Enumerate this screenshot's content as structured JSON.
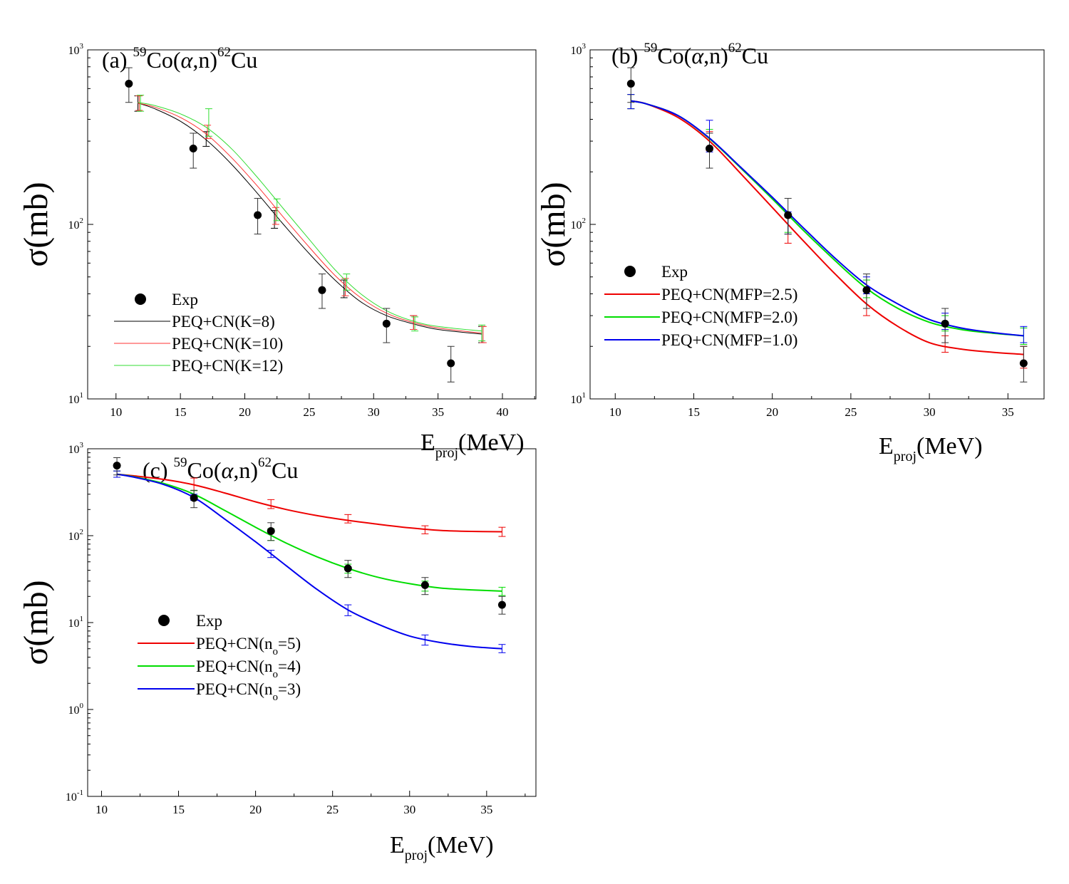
{
  "figure": {
    "panels": [
      {
        "id": "a",
        "title": "(a) "
      },
      {
        "id": "b",
        "title": "(b) "
      },
      {
        "id": "c",
        "title": "(c) "
      }
    ]
  },
  "chart_data": [
    {
      "panel": "a",
      "type": "line",
      "title": "(a) 59Co(α,n)62Cu",
      "reaction": {
        "target_mass": "59",
        "target": "Co(",
        "alpha": "α",
        "rest": ",n)",
        "product_mass": "62",
        "product": "Cu"
      },
      "xlabel": {
        "main": "E",
        "sub": "proj",
        "unit": "(MeV)"
      },
      "ylabel": "σ(mb)",
      "yscale": "log",
      "xlim": [
        7.8,
        42.6
      ],
      "ylim": [
        10,
        1000
      ],
      "xticks": [
        10,
        15,
        20,
        25,
        30,
        35,
        40
      ],
      "yticks": [
        {
          "base": "10",
          "exp": "1",
          "value": 10
        },
        {
          "base": "10",
          "exp": "2",
          "value": 100
        },
        {
          "base": "10",
          "exp": "3",
          "value": 1000
        }
      ],
      "legend_position": "bottom-left",
      "exp": {
        "name": "Exp",
        "points": [
          {
            "x": 11,
            "y": 640,
            "lo": 500,
            "hi": 790
          },
          {
            "x": 16,
            "y": 272,
            "lo": 210,
            "hi": 333
          },
          {
            "x": 21,
            "y": 113,
            "lo": 88,
            "hi": 141
          },
          {
            "x": 26,
            "y": 42,
            "lo": 33,
            "hi": 52
          },
          {
            "x": 31,
            "y": 27,
            "lo": 21,
            "hi": 33
          },
          {
            "x": 36,
            "y": 16,
            "lo": 12.5,
            "hi": 20
          }
        ]
      },
      "series": [
        {
          "name": "PEQ+CN(K=8)",
          "color": "#000000",
          "stroke_width": 1,
          "x": [
            11.7,
            13,
            15,
            17,
            19,
            21,
            23,
            25,
            27,
            29,
            31,
            33,
            35,
            38.4
          ],
          "y": [
            495,
            460,
            390,
            305,
            220,
            150,
            100,
            68,
            48,
            36,
            30,
            27,
            25,
            23.5
          ],
          "err": [
            {
              "x": 11.7,
              "lo": 445,
              "hi": 545
            },
            {
              "x": 17,
              "lo": 280,
              "hi": 340
            },
            {
              "x": 22.3,
              "lo": 95,
              "hi": 120
            },
            {
              "x": 27.7,
              "lo": 38,
              "hi": 48
            },
            {
              "x": 33.1,
              "lo": 25,
              "hi": 30
            },
            {
              "x": 38.4,
              "lo": 21,
              "hi": 26
            }
          ]
        },
        {
          "name": "PEQ+CN(K=10)",
          "color": "#ff3333",
          "stroke_width": 1,
          "x": [
            11.7,
            13,
            15,
            17,
            19,
            21,
            23,
            25,
            27,
            29,
            31,
            33,
            35,
            38.4
          ],
          "y": [
            495,
            470,
            410,
            330,
            240,
            165,
            110,
            74,
            51,
            38,
            31,
            27.5,
            25.5,
            23.8
          ],
          "err": [
            {
              "x": 11.8,
              "lo": 450,
              "hi": 545
            },
            {
              "x": 17.1,
              "lo": 310,
              "hi": 370
            },
            {
              "x": 22.4,
              "lo": 100,
              "hi": 125
            },
            {
              "x": 27.8,
              "lo": 39,
              "hi": 49
            },
            {
              "x": 33.1,
              "lo": 25,
              "hi": 30
            },
            {
              "x": 38.5,
              "lo": 21,
              "hi": 26
            }
          ]
        },
        {
          "name": "PEQ+CN(K=12)",
          "color": "#33dd33",
          "stroke_width": 1,
          "x": [
            11.7,
            13,
            15,
            17,
            19,
            21,
            23,
            25,
            27,
            29,
            31,
            33,
            35,
            38.4
          ],
          "y": [
            500,
            480,
            430,
            360,
            270,
            185,
            123,
            82,
            55,
            40,
            32,
            28,
            26,
            24.5
          ],
          "err": [
            {
              "x": 11.9,
              "lo": 445,
              "hi": 550
            },
            {
              "x": 17.2,
              "lo": 320,
              "hi": 460
            },
            {
              "x": 22.5,
              "lo": 105,
              "hi": 140
            },
            {
              "x": 27.9,
              "lo": 42,
              "hi": 52
            },
            {
              "x": 33.2,
              "lo": 24.5,
              "hi": 29.5
            },
            {
              "x": 38.4,
              "lo": 21.5,
              "hi": 26.5
            }
          ]
        }
      ]
    },
    {
      "panel": "b",
      "type": "line",
      "title": "(b) 59Co(α,n)62Cu",
      "reaction": {
        "target_mass": "59",
        "target": "Co(",
        "alpha": "α",
        "rest": ",n)",
        "product_mass": "62",
        "product": "Cu"
      },
      "xlabel": {
        "main": "E",
        "sub": "proj",
        "unit": "(MeV)"
      },
      "ylabel": "σ(mb)",
      "yscale": "log",
      "xlim": [
        8.4,
        37.3
      ],
      "ylim": [
        10,
        1000
      ],
      "xticks": [
        10,
        15,
        20,
        25,
        30,
        35
      ],
      "yticks": [
        {
          "base": "10",
          "exp": "1",
          "value": 10
        },
        {
          "base": "10",
          "exp": "2",
          "value": 100
        },
        {
          "base": "10",
          "exp": "3",
          "value": 1000
        }
      ],
      "legend_position": "middle-left",
      "exp": {
        "name": "Exp",
        "points": [
          {
            "x": 11,
            "y": 640,
            "lo": 500,
            "hi": 790
          },
          {
            "x": 16,
            "y": 272,
            "lo": 210,
            "hi": 333
          },
          {
            "x": 21,
            "y": 113,
            "lo": 88,
            "hi": 141
          },
          {
            "x": 26,
            "y": 42,
            "lo": 33,
            "hi": 52
          },
          {
            "x": 31,
            "y": 27,
            "lo": 21,
            "hi": 33
          },
          {
            "x": 36,
            "y": 16,
            "lo": 12.5,
            "hi": 20
          }
        ]
      },
      "series": [
        {
          "name": "PEQ+CN(MFP=2.5)",
          "color": "#ee0000",
          "stroke_width": 2,
          "x": [
            11,
            12,
            14,
            16,
            18,
            20,
            22,
            24,
            26,
            28,
            30,
            32,
            34,
            36
          ],
          "y": [
            510,
            490,
            410,
            300,
            195,
            125,
            80,
            52,
            35,
            26,
            21,
            19.3,
            18.5,
            18
          ],
          "err": [
            {
              "x": 11,
              "lo": 460,
              "hi": 555
            },
            {
              "x": 16,
              "lo": 265,
              "hi": 340
            },
            {
              "x": 21,
              "lo": 78,
              "hi": 110
            },
            {
              "x": 26,
              "lo": 30,
              "hi": 40
            },
            {
              "x": 31,
              "lo": 18.5,
              "hi": 23
            },
            {
              "x": 36,
              "lo": 15,
              "hi": 20
            }
          ]
        },
        {
          "name": "PEQ+CN(MFP=2.0)",
          "color": "#00dd00",
          "stroke_width": 2,
          "x": [
            11,
            12,
            14,
            16,
            18,
            20,
            22,
            24,
            26,
            28,
            30,
            32,
            34,
            36
          ],
          "y": [
            510,
            490,
            420,
            310,
            210,
            140,
            92,
            62,
            43,
            33,
            27.5,
            25,
            23.8,
            23
          ],
          "err": [
            {
              "x": 11,
              "lo": 460,
              "hi": 555
            },
            {
              "x": 16,
              "lo": 270,
              "hi": 350
            },
            {
              "x": 21,
              "lo": 90,
              "hi": 115
            },
            {
              "x": 26,
              "lo": 38,
              "hi": 48
            },
            {
              "x": 31,
              "lo": 24.5,
              "hi": 30
            },
            {
              "x": 36,
              "lo": 20.5,
              "hi": 25.5
            }
          ]
        },
        {
          "name": "PEQ+CN(MFP=1.0)",
          "color": "#0000ee",
          "stroke_width": 2,
          "x": [
            11,
            12,
            14,
            16,
            18,
            20,
            22,
            24,
            26,
            28,
            30,
            32,
            34,
            36
          ],
          "y": [
            510,
            490,
            420,
            312,
            212,
            143,
            95,
            64,
            45,
            35,
            28.5,
            25.5,
            24,
            23
          ],
          "err": [
            {
              "x": 11,
              "lo": 460,
              "hi": 555
            },
            {
              "x": 16,
              "lo": 260,
              "hi": 395
            },
            {
              "x": 21,
              "lo": 88,
              "hi": 118
            },
            {
              "x": 26,
              "lo": 40,
              "hi": 50
            },
            {
              "x": 31,
              "lo": 25,
              "hi": 31
            },
            {
              "x": 36,
              "lo": 21,
              "hi": 26
            }
          ]
        }
      ]
    },
    {
      "panel": "c",
      "type": "line",
      "title": "(c) 59Co(α,n)62Cu",
      "reaction": {
        "target_mass": "59",
        "target": "Co(",
        "alpha": "α",
        "rest": ",n)",
        "product_mass": "62",
        "product": "Cu"
      },
      "xlabel": {
        "main": "E",
        "sub": "proj",
        "unit": "(MeV)"
      },
      "ylabel": "σ(mb)",
      "yscale": "log",
      "xlim": [
        9.1,
        38.2
      ],
      "ylim": [
        0.1,
        1000
      ],
      "xticks": [
        10,
        15,
        20,
        25,
        30,
        35
      ],
      "yticks": [
        {
          "base": "10",
          "exp": "-1",
          "value": 0.1
        },
        {
          "base": "10",
          "exp": "0",
          "value": 1
        },
        {
          "base": "10",
          "exp": "1",
          "value": 10
        },
        {
          "base": "10",
          "exp": "2",
          "value": 100
        },
        {
          "base": "10",
          "exp": "3",
          "value": 1000
        }
      ],
      "legend_position": "middle-left",
      "exp": {
        "name": "Exp",
        "points": [
          {
            "x": 11,
            "y": 640,
            "lo": 500,
            "hi": 790
          },
          {
            "x": 16,
            "y": 272,
            "lo": 210,
            "hi": 333
          },
          {
            "x": 21,
            "y": 113,
            "lo": 88,
            "hi": 141
          },
          {
            "x": 26,
            "y": 42,
            "lo": 33,
            "hi": 52
          },
          {
            "x": 31,
            "y": 27,
            "lo": 21,
            "hi": 33
          },
          {
            "x": 36,
            "y": 16,
            "lo": 12.5,
            "hi": 20
          }
        ]
      },
      "series": [
        {
          "name": "PEQ+CN(n",
          "sub": "o",
          "suffix": "=5)",
          "color": "#ee0000",
          "stroke_width": 2,
          "x": [
            11,
            12,
            14,
            16,
            18,
            20,
            22,
            24,
            26,
            28,
            30,
            32,
            34,
            36
          ],
          "y": [
            510,
            490,
            445,
            385,
            310,
            245,
            200,
            170,
            150,
            135,
            123,
            115,
            112,
            111
          ],
          "err": [
            {
              "x": 11,
              "lo": 470,
              "hi": 555
            },
            {
              "x": 16,
              "lo": 330,
              "hi": 460
            },
            {
              "x": 21,
              "lo": 205,
              "hi": 260
            },
            {
              "x": 26,
              "lo": 140,
              "hi": 175
            },
            {
              "x": 31,
              "lo": 105,
              "hi": 130
            },
            {
              "x": 36,
              "lo": 98,
              "hi": 125
            }
          ]
        },
        {
          "name": "PEQ+CN(n",
          "sub": "o",
          "suffix": "=4)",
          "color": "#00dd00",
          "stroke_width": 2,
          "x": [
            11,
            12,
            14,
            16,
            18,
            20,
            22,
            24,
            26,
            28,
            30,
            32,
            34,
            36
          ],
          "y": [
            510,
            480,
            400,
            300,
            195,
            125,
            82,
            57,
            42,
            33,
            28,
            25,
            23.8,
            23
          ],
          "err": [
            {
              "x": 11,
              "lo": 470,
              "hi": 555
            },
            {
              "x": 16,
              "lo": 280,
              "hi": 330
            },
            {
              "x": 21,
              "lo": 88,
              "hi": 120
            },
            {
              "x": 26,
              "lo": 37,
              "hi": 47
            },
            {
              "x": 31,
              "lo": 23,
              "hi": 30
            },
            {
              "x": 36,
              "lo": 20.5,
              "hi": 25.5
            }
          ]
        },
        {
          "name": "PEQ+CN(n",
          "sub": "o",
          "suffix": "=3)",
          "color": "#0000ee",
          "stroke_width": 2,
          "x": [
            11,
            12,
            14,
            16,
            18,
            20,
            22,
            24,
            26,
            28,
            30,
            32,
            34,
            36
          ],
          "y": [
            510,
            475,
            390,
            275,
            155,
            85,
            45,
            24,
            14,
            9.5,
            7,
            5.9,
            5.3,
            5
          ],
          "err": [
            {
              "x": 11,
              "lo": 470,
              "hi": 555
            },
            {
              "x": 16,
              "lo": 255,
              "hi": 300
            },
            {
              "x": 21,
              "lo": 56,
              "hi": 68
            },
            {
              "x": 26,
              "lo": 12,
              "hi": 16
            },
            {
              "x": 31,
              "lo": 5.5,
              "hi": 7.2
            },
            {
              "x": 36,
              "lo": 4.5,
              "hi": 5.6
            }
          ]
        }
      ]
    }
  ]
}
